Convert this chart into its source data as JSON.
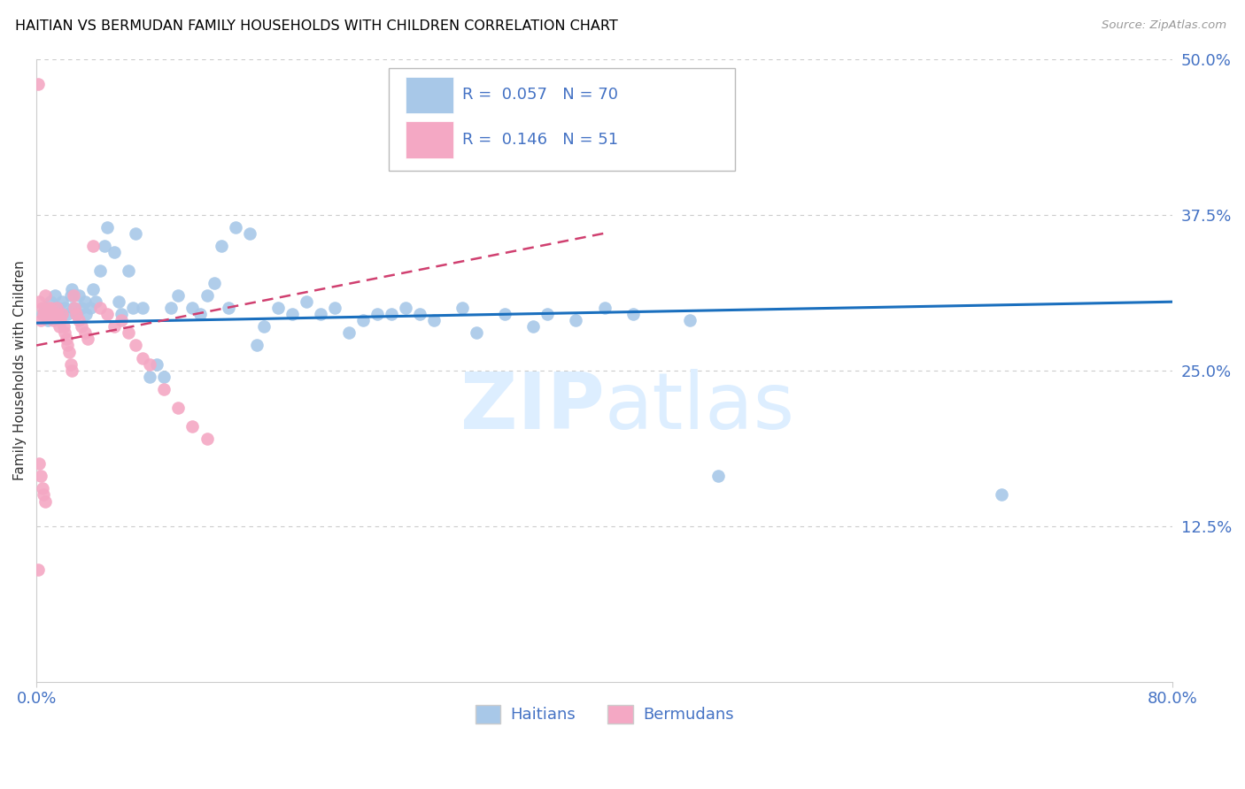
{
  "title": "HAITIAN VS BERMUDAN FAMILY HOUSEHOLDS WITH CHILDREN CORRELATION CHART",
  "source": "Source: ZipAtlas.com",
  "ylabel": "Family Households with Children",
  "xlim": [
    0.0,
    0.8
  ],
  "ylim": [
    0.0,
    0.5
  ],
  "y_ticks_right": [
    0.125,
    0.25,
    0.375,
    0.5
  ],
  "y_tick_labels_right": [
    "12.5%",
    "25.0%",
    "37.5%",
    "50.0%"
  ],
  "legend_label1": "Haitians",
  "legend_label2": "Bermudans",
  "legend_R1": "0.057",
  "legend_N1": "70",
  "legend_R2": "0.146",
  "legend_N2": "51",
  "color_haitian": "#a8c8e8",
  "color_bermudan": "#f4a8c4",
  "color_line_haitian": "#1a6fbe",
  "color_line_bermudan": "#d04070",
  "color_axis_text": "#4472c4",
  "watermark_color": "#ddeeff",
  "haitian_x": [
    0.004,
    0.006,
    0.008,
    0.01,
    0.012,
    0.013,
    0.015,
    0.016,
    0.018,
    0.02,
    0.022,
    0.024,
    0.025,
    0.026,
    0.028,
    0.03,
    0.032,
    0.034,
    0.035,
    0.038,
    0.04,
    0.042,
    0.045,
    0.048,
    0.05,
    0.055,
    0.058,
    0.06,
    0.065,
    0.068,
    0.07,
    0.075,
    0.08,
    0.085,
    0.09,
    0.095,
    0.1,
    0.11,
    0.115,
    0.12,
    0.125,
    0.13,
    0.135,
    0.14,
    0.15,
    0.155,
    0.16,
    0.17,
    0.18,
    0.19,
    0.2,
    0.21,
    0.22,
    0.23,
    0.24,
    0.25,
    0.26,
    0.27,
    0.28,
    0.3,
    0.31,
    0.33,
    0.35,
    0.36,
    0.38,
    0.4,
    0.42,
    0.46,
    0.48,
    0.68
  ],
  "haitian_y": [
    0.295,
    0.3,
    0.29,
    0.305,
    0.295,
    0.31,
    0.3,
    0.295,
    0.305,
    0.3,
    0.295,
    0.31,
    0.315,
    0.3,
    0.295,
    0.31,
    0.3,
    0.305,
    0.295,
    0.3,
    0.315,
    0.305,
    0.33,
    0.35,
    0.365,
    0.345,
    0.305,
    0.295,
    0.33,
    0.3,
    0.36,
    0.3,
    0.245,
    0.255,
    0.245,
    0.3,
    0.31,
    0.3,
    0.295,
    0.31,
    0.32,
    0.35,
    0.3,
    0.365,
    0.36,
    0.27,
    0.285,
    0.3,
    0.295,
    0.305,
    0.295,
    0.3,
    0.28,
    0.29,
    0.295,
    0.295,
    0.3,
    0.295,
    0.29,
    0.3,
    0.28,
    0.295,
    0.285,
    0.295,
    0.29,
    0.3,
    0.295,
    0.29,
    0.165,
    0.15
  ],
  "bermudan_x": [
    0.001,
    0.002,
    0.003,
    0.004,
    0.005,
    0.006,
    0.007,
    0.008,
    0.009,
    0.01,
    0.011,
    0.012,
    0.013,
    0.014,
    0.015,
    0.016,
    0.017,
    0.018,
    0.019,
    0.02,
    0.021,
    0.022,
    0.023,
    0.024,
    0.025,
    0.026,
    0.027,
    0.028,
    0.03,
    0.032,
    0.034,
    0.036,
    0.04,
    0.045,
    0.05,
    0.055,
    0.06,
    0.065,
    0.07,
    0.075,
    0.08,
    0.09,
    0.1,
    0.11,
    0.12,
    0.002,
    0.003,
    0.004,
    0.005,
    0.006,
    0.001
  ],
  "bermudan_y": [
    0.48,
    0.305,
    0.29,
    0.3,
    0.295,
    0.31,
    0.295,
    0.3,
    0.295,
    0.3,
    0.295,
    0.29,
    0.295,
    0.3,
    0.295,
    0.285,
    0.29,
    0.295,
    0.285,
    0.28,
    0.275,
    0.27,
    0.265,
    0.255,
    0.25,
    0.31,
    0.3,
    0.295,
    0.29,
    0.285,
    0.28,
    0.275,
    0.35,
    0.3,
    0.295,
    0.285,
    0.29,
    0.28,
    0.27,
    0.26,
    0.255,
    0.235,
    0.22,
    0.205,
    0.195,
    0.175,
    0.165,
    0.155,
    0.15,
    0.145,
    0.09
  ],
  "trendline_h_x0": 0.0,
  "trendline_h_y0": 0.288,
  "trendline_h_x1": 0.8,
  "trendline_h_y1": 0.305,
  "trendline_b_x0": 0.0,
  "trendline_b_y0": 0.27,
  "trendline_b_x1": 0.4,
  "trendline_b_y1": 0.36
}
